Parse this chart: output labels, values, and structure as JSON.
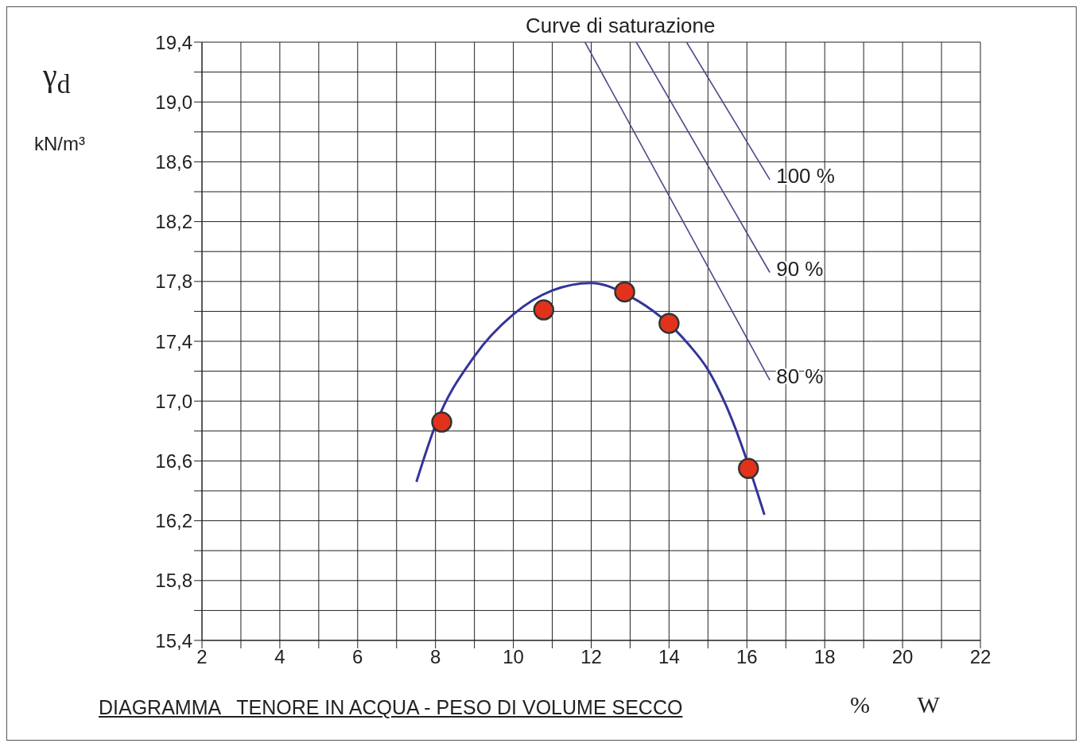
{
  "chart_data": {
    "type": "scatter",
    "title": "DIAGRAMMA   TENORE IN ACQUA - PESO DI VOLUME SECCO",
    "xlabel": "%        W",
    "ylabel": "γ$_{d}$",
    "annotations": [
      "Curve di saturazione",
      "kN/m³"
    ],
    "xlim": [
      2,
      22
    ],
    "xticks": [
      2,
      {
        "value": 3,
        "label": null
      },
      4,
      {
        "value": 5,
        "label": null
      },
      6,
      {
        "value": 7,
        "label": null
      },
      8,
      {
        "value": 9,
        "label": null
      },
      10,
      {
        "value": 11,
        "label": null
      },
      12,
      {
        "value": 13,
        "label": null
      },
      14,
      {
        "value": 15,
        "label": null
      },
      16,
      {
        "value": 17,
        "label": null
      },
      18,
      {
        "value": 19,
        "label": null
      },
      20,
      {
        "value": 21,
        "label": null
      },
      22
    ],
    "ylim": [
      15.4,
      19.4
    ],
    "yticks": [
      {
        "value": 15.4,
        "label": "15,4"
      },
      {
        "value": 15.6,
        "label": null
      },
      {
        "value": 15.8,
        "label": "15,8"
      },
      {
        "value": 16.0,
        "label": null
      },
      {
        "value": 16.2,
        "label": "16,2"
      },
      {
        "value": 16.4,
        "label": null
      },
      {
        "value": 16.6,
        "label": "16,6"
      },
      {
        "value": 16.8,
        "label": null
      },
      {
        "value": 17.0,
        "label": "17,0"
      },
      {
        "value": 17.2,
        "label": null
      },
      {
        "value": 17.4,
        "label": "17,4"
      },
      {
        "value": 17.6,
        "label": null
      },
      {
        "value": 17.8,
        "label": "17,8"
      },
      {
        "value": 18.0,
        "label": null
      },
      {
        "value": 18.2,
        "label": "18,2"
      },
      {
        "value": 18.4,
        "label": null
      },
      {
        "value": 18.6,
        "label": "18,6"
      },
      {
        "value": 18.8,
        "label": null
      },
      {
        "value": 19.0,
        "label": "19,0"
      },
      {
        "value": 19.2,
        "label": null
      },
      {
        "value": 19.4,
        "label": "19,4"
      }
    ],
    "grid": true,
    "legend": false,
    "series": [
      {
        "type": "line",
        "color": "#34349a",
        "marker": "none",
        "x": [
          7.51,
          8,
          9,
          10,
          11,
          12,
          13,
          14.5,
          15,
          15.5,
          16.45
        ],
        "values": [
          16.46,
          16.84,
          17.3,
          17.58,
          17.74,
          17.79,
          17.7,
          17.38,
          17.21,
          16.95,
          16.24
        ]
      },
      {
        "type": "line",
        "name": "100 %",
        "color": "#4a4a8a",
        "marker": "none",
        "x": [
          14.45,
          16.59
        ],
        "values": [
          19.4,
          18.48
        ]
      },
      {
        "type": "line",
        "name": "90 %",
        "color": "#4a4a8a",
        "marker": "none",
        "x": [
          13.16,
          16.59
        ],
        "values": [
          19.4,
          17.86
        ]
      },
      {
        "type": "line",
        "name": "80 %",
        "color": "#4a4a8a",
        "marker": "none",
        "x": [
          11.84,
          16.59
        ],
        "values": [
          19.4,
          17.14
        ]
      },
      {
        "type": "scatter",
        "color": "#e3321c",
        "marker": "circle",
        "x": [
          8.16,
          10.78,
          12.86,
          14.0,
          16.04
        ],
        "values": [
          16.86,
          17.61,
          17.73,
          17.52,
          16.55
        ]
      }
    ]
  }
}
